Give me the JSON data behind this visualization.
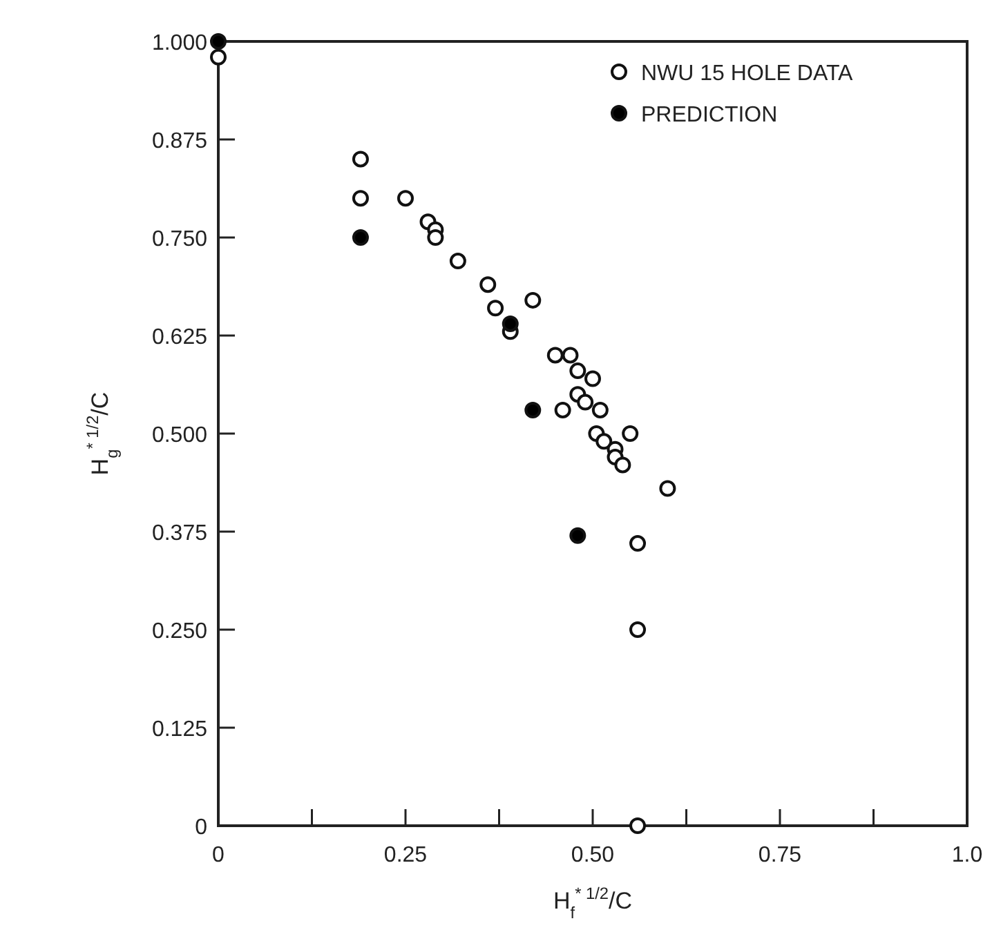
{
  "chart_data": {
    "type": "scatter",
    "xlabel": "H$_{f}$$^{* 1/2}$/C",
    "ylabel": "H$_{g}$$^{* 1/2}$/C",
    "xlim": [
      0,
      1
    ],
    "xticks": [
      0,
      {
        "value": 0.125,
        "label": null
      },
      {
        "value": 0.25,
        "label": "0.25"
      },
      {
        "value": 0.375,
        "label": null
      },
      {
        "value": 0.5,
        "label": "0.50"
      },
      {
        "value": 0.625,
        "label": null
      },
      {
        "value": 0.75,
        "label": "0.75"
      },
      {
        "value": 0.875,
        "label": null
      },
      {
        "value": 1,
        "label": "1.0"
      }
    ],
    "ylim": [
      0,
      1
    ],
    "yticks": [
      {
        "value": 0,
        "label": "0"
      },
      {
        "value": 0.125,
        "label": "0.125"
      },
      {
        "value": 0.25,
        "label": "0.250"
      },
      {
        "value": 0.375,
        "label": "0.375"
      },
      {
        "value": 0.5,
        "label": "0.500"
      },
      {
        "value": 0.625,
        "label": "0.625"
      },
      {
        "value": 0.75,
        "label": "0.750"
      },
      {
        "value": 0.875,
        "label": "0.875"
      },
      {
        "value": 1,
        "label": "1.000"
      }
    ],
    "grid": false,
    "legend": "top right",
    "marker": "circle",
    "series": [
      {
        "name": "NWU 15 HOLE DATA",
        "color": "#ffffff",
        "x": [
          0,
          0.19,
          0.19,
          0.25,
          0.28,
          0.29,
          0.29,
          0.32,
          0.36,
          0.37,
          0.42,
          0.39,
          0.45,
          0.46,
          0.47,
          0.48,
          0.5,
          0.48,
          0.49,
          0.51,
          0.505,
          0.515,
          0.55,
          0.53,
          0.53,
          0.54,
          0.6,
          0.56,
          0.56,
          0.56
        ],
        "values": [
          0.98,
          0.85,
          0.8,
          0.8,
          0.77,
          0.76,
          0.75,
          0.72,
          0.69,
          0.66,
          0.67,
          0.63,
          0.6,
          0.53,
          0.6,
          0.58,
          0.57,
          0.55,
          0.54,
          0.53,
          0.5,
          0.49,
          0.5,
          0.48,
          0.47,
          0.46,
          0.43,
          0.36,
          0.25,
          0
        ]
      },
      {
        "name": "PREDICTION",
        "color": "#000000",
        "x": [
          0,
          0.19,
          0.39,
          0.42,
          0.48
        ],
        "values": [
          1,
          0.75,
          0.64,
          0.53,
          0.37
        ]
      }
    ]
  }
}
